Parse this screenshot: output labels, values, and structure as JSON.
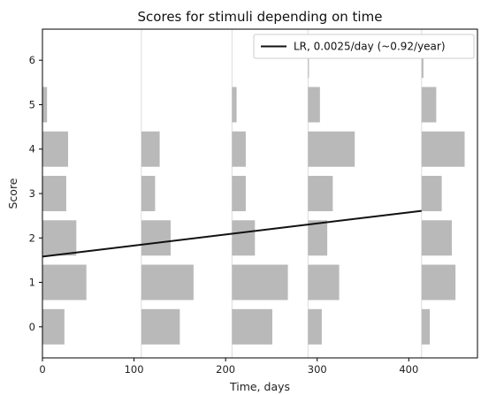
{
  "chart_data": {
    "type": "bar",
    "title": "Scores for stimuli depending on time",
    "xlabel": "Time, days",
    "ylabel": "Score",
    "xlim": [
      0,
      475
    ],
    "ylim": [
      -0.7,
      6.7
    ],
    "xticks": [
      "0",
      "100",
      "200",
      "300",
      "400"
    ],
    "yticks": [
      "0",
      "1",
      "2",
      "3",
      "4",
      "5",
      "6"
    ],
    "bar_color": "#b9b9b9",
    "line_color": "#111111",
    "legend": {
      "label": "LR, 0.0025/day (~0.92/year)",
      "placement": "upper right"
    },
    "sessions": [
      {
        "day": 0,
        "counts": [
          24,
          48,
          37,
          26,
          28,
          5,
          0
        ]
      },
      {
        "day": 108,
        "counts": [
          42,
          57,
          32,
          15,
          20,
          0,
          0
        ]
      },
      {
        "day": 207,
        "counts": [
          44,
          61,
          25,
          15,
          15,
          5,
          0
        ]
      },
      {
        "day": 290,
        "counts": [
          15,
          34,
          21,
          27,
          51,
          13,
          1
        ]
      },
      {
        "day": 414,
        "counts": [
          9,
          37,
          33,
          22,
          47,
          16,
          2
        ]
      }
    ],
    "series": [
      {
        "name": "LR, 0.0025/day (~0.92/year)",
        "x": [
          0,
          414
        ],
        "y": [
          1.58,
          2.61
        ]
      }
    ],
    "grid": false
  }
}
